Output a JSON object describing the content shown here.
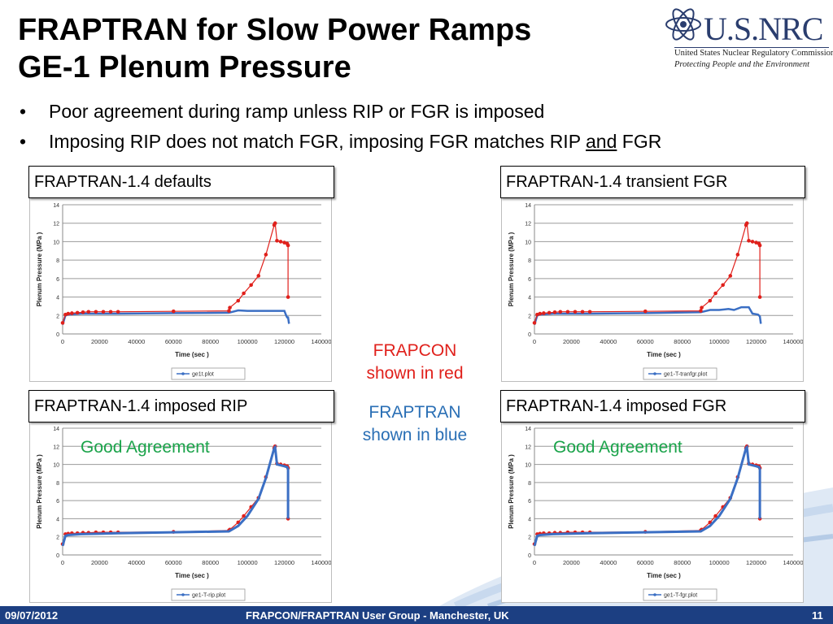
{
  "slide": {
    "title_line1": "FRAPTRAN for Slow Power Ramps",
    "title_line2": "GE-1 Plenum Pressure",
    "bullets": [
      {
        "text": "Poor agreement during ramp unless RIP or FGR is imposed"
      },
      {
        "pre": "Imposing RIP does not match FGR, imposing FGR matches RIP ",
        "underline": "and",
        "post": " FGR"
      }
    ],
    "logo": {
      "name": "U.S.NRC",
      "subtitle": "United States Nuclear Regulatory Commission",
      "tagline": "Protecting People and the Environment"
    },
    "notes": {
      "frapcon": [
        "FRAPCON",
        "shown in red"
      ],
      "fraptran": [
        "FRAPTRAN",
        "shown in blue"
      ]
    },
    "footer": {
      "date": "09/07/2012",
      "event": "FRAPCON/FRAPTRAN User Group - Manchester, UK",
      "page": "11"
    },
    "colors": {
      "frapcon": "#e0201b",
      "fraptran": "#3b6fc4",
      "good": "#1aa34a",
      "footer": "#1c3f82"
    }
  },
  "chart_data": [
    {
      "id": "defaults",
      "type": "line",
      "panel_label": "FRAPTRAN-1.4 defaults",
      "good_label": "",
      "xlabel": "Time (sec )",
      "ylabel": "Plenum Pressure (MPa )",
      "xlim": [
        0,
        140000
      ],
      "ylim": [
        0,
        14
      ],
      "xticks": [
        0,
        20000,
        40000,
        60000,
        80000,
        100000,
        120000,
        140000
      ],
      "yticks": [
        0,
        2,
        4,
        6,
        8,
        10,
        12,
        14
      ],
      "grid": "horizontal",
      "legend": "bottom-center",
      "series": [
        {
          "name": "ge1t.plot",
          "role": "frapcon",
          "x": [
            0,
            1500,
            3000,
            5000,
            8000,
            11000,
            14000,
            18000,
            22000,
            26000,
            30000,
            60000,
            90000,
            90500,
            95000,
            98000,
            102000,
            106000,
            110000,
            114500,
            115000,
            116000,
            118000,
            120000,
            121500,
            122000,
            122000
          ],
          "y": [
            1.2,
            2.1,
            2.2,
            2.25,
            2.3,
            2.35,
            2.4,
            2.4,
            2.4,
            2.4,
            2.4,
            2.45,
            2.5,
            2.85,
            3.6,
            4.4,
            5.3,
            6.3,
            8.6,
            11.8,
            12.0,
            10.1,
            10.0,
            9.9,
            9.8,
            9.6,
            4.0
          ]
        },
        {
          "name": "",
          "role": "fraptran",
          "x": [
            0,
            1500,
            3000,
            10000,
            30000,
            60000,
            90000,
            95000,
            100000,
            110000,
            120000,
            121000,
            121500,
            122000,
            122500
          ],
          "y": [
            1.0,
            2.0,
            2.1,
            2.2,
            2.2,
            2.25,
            2.3,
            2.55,
            2.5,
            2.5,
            2.5,
            2.0,
            1.8,
            1.8,
            1.1
          ]
        }
      ]
    },
    {
      "id": "transient-fgr",
      "type": "line",
      "panel_label": "FRAPTRAN-1.4 transient FGR",
      "good_label": "",
      "xlabel": "Time (sec )",
      "ylabel": "Plenum Pressure (MPa )",
      "xlim": [
        0,
        140000
      ],
      "ylim": [
        0,
        14
      ],
      "xticks": [
        0,
        20000,
        40000,
        60000,
        80000,
        100000,
        120000,
        140000
      ],
      "yticks": [
        0,
        2,
        4,
        6,
        8,
        10,
        12,
        14
      ],
      "grid": "horizontal",
      "legend": "bottom-center",
      "series": [
        {
          "name": "ge1-T-tranfgr.plot",
          "role": "frapcon",
          "x": [
            0,
            1500,
            3000,
            5000,
            8000,
            11000,
            14000,
            18000,
            22000,
            26000,
            30000,
            60000,
            90000,
            90500,
            95000,
            98000,
            102000,
            106000,
            110000,
            114500,
            115000,
            116000,
            118000,
            120000,
            121500,
            122000,
            122000
          ],
          "y": [
            1.2,
            2.1,
            2.2,
            2.25,
            2.3,
            2.35,
            2.4,
            2.4,
            2.4,
            2.4,
            2.4,
            2.45,
            2.5,
            2.85,
            3.6,
            4.4,
            5.3,
            6.3,
            8.6,
            11.8,
            12.0,
            10.1,
            10.0,
            9.9,
            9.8,
            9.6,
            4.0
          ]
        },
        {
          "name": "",
          "role": "fraptran",
          "x": [
            0,
            1500,
            3000,
            10000,
            30000,
            60000,
            90000,
            95000,
            100000,
            105000,
            108000,
            112000,
            116000,
            118000,
            121000,
            122000,
            122500
          ],
          "y": [
            1.0,
            2.0,
            2.1,
            2.2,
            2.2,
            2.25,
            2.35,
            2.6,
            2.6,
            2.7,
            2.6,
            2.9,
            2.9,
            2.2,
            2.1,
            1.9,
            1.1
          ]
        }
      ]
    },
    {
      "id": "imposed-rip",
      "type": "line",
      "panel_label": "FRAPTRAN-1.4 imposed RIP",
      "good_label": "Good Agreement",
      "xlabel": "Time (sec )",
      "ylabel": "Plenum Pressure (MPa )",
      "xlim": [
        0,
        140000
      ],
      "ylim": [
        0,
        14
      ],
      "xticks": [
        0,
        20000,
        40000,
        60000,
        80000,
        100000,
        120000,
        140000
      ],
      "yticks": [
        0,
        2,
        4,
        6,
        8,
        10,
        12,
        14
      ],
      "grid": "horizontal",
      "legend": "bottom-center",
      "series": [
        {
          "name": "ge1-T-rip.plot",
          "role": "frapcon",
          "x": [
            0,
            1500,
            3000,
            5000,
            8000,
            11000,
            14000,
            18000,
            22000,
            26000,
            30000,
            60000,
            90000,
            90500,
            95000,
            98000,
            102000,
            106000,
            110000,
            114500,
            115000,
            116000,
            118000,
            120000,
            121500,
            122000,
            122000
          ],
          "y": [
            1.2,
            2.3,
            2.35,
            2.4,
            2.4,
            2.45,
            2.45,
            2.5,
            2.5,
            2.5,
            2.5,
            2.55,
            2.7,
            2.8,
            3.6,
            4.3,
            5.3,
            6.3,
            8.6,
            11.8,
            12.0,
            10.1,
            10.0,
            9.9,
            9.8,
            9.6,
            4.0
          ]
        },
        {
          "name": "",
          "role": "fraptran",
          "x": [
            0,
            1500,
            3000,
            10000,
            30000,
            60000,
            90000,
            95000,
            100000,
            106000,
            110000,
            114500,
            115000,
            116000,
            118000,
            120000,
            121500,
            122000,
            122000
          ],
          "y": [
            1.0,
            2.1,
            2.2,
            2.3,
            2.4,
            2.5,
            2.6,
            3.2,
            4.3,
            6.2,
            8.5,
            11.8,
            11.9,
            10.0,
            9.9,
            9.8,
            9.7,
            9.5,
            4.0
          ]
        }
      ]
    },
    {
      "id": "imposed-fgr",
      "type": "line",
      "panel_label": "FRAPTRAN-1.4 imposed FGR",
      "good_label": "Good Agreement",
      "xlabel": "Time (sec )",
      "ylabel": "Plenum Pressure (MPa )",
      "xlim": [
        0,
        140000
      ],
      "ylim": [
        0,
        14
      ],
      "xticks": [
        0,
        20000,
        40000,
        60000,
        80000,
        100000,
        120000,
        140000
      ],
      "yticks": [
        0,
        2,
        4,
        6,
        8,
        10,
        12,
        14
      ],
      "grid": "horizontal",
      "legend": "bottom-center",
      "series": [
        {
          "name": "ge1-T-fgr.plot",
          "role": "frapcon",
          "x": [
            0,
            1500,
            3000,
            5000,
            8000,
            11000,
            14000,
            18000,
            22000,
            26000,
            30000,
            60000,
            90000,
            90500,
            95000,
            98000,
            102000,
            106000,
            110000,
            114500,
            115000,
            116000,
            118000,
            120000,
            121500,
            122000,
            122000
          ],
          "y": [
            1.2,
            2.3,
            2.35,
            2.4,
            2.4,
            2.45,
            2.45,
            2.5,
            2.5,
            2.5,
            2.5,
            2.55,
            2.7,
            2.8,
            3.6,
            4.3,
            5.3,
            6.3,
            8.6,
            11.8,
            12.0,
            10.1,
            10.0,
            9.9,
            9.8,
            9.6,
            4.0
          ]
        },
        {
          "name": "",
          "role": "fraptran",
          "x": [
            0,
            1500,
            3000,
            10000,
            30000,
            60000,
            90000,
            95000,
            100000,
            106000,
            110000,
            114500,
            115000,
            116000,
            118000,
            120000,
            121500,
            122000,
            122000
          ],
          "y": [
            1.0,
            2.1,
            2.2,
            2.3,
            2.4,
            2.5,
            2.6,
            3.2,
            4.3,
            6.2,
            8.5,
            11.8,
            11.9,
            10.0,
            9.9,
            9.8,
            9.7,
            9.5,
            4.0
          ]
        }
      ]
    }
  ]
}
